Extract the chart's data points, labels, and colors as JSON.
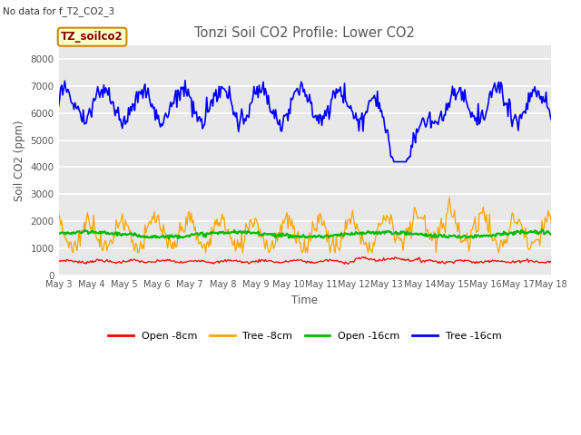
{
  "title": "Tonzi Soil CO2 Profile: Lower CO2",
  "subtitle": "No data for f_T2_CO2_3",
  "xlabel": "Time",
  "ylabel": "Soil CO2 (ppm)",
  "ylim": [
    0,
    8500
  ],
  "yticks": [
    0,
    1000,
    2000,
    3000,
    4000,
    5000,
    6000,
    7000,
    8000
  ],
  "x_labels": [
    "May 3",
    "May 4",
    "May 5",
    "May 6",
    "May 7",
    "May 8",
    "May 9",
    "May 10",
    "May 11",
    "May 12",
    "May 13",
    "May 14",
    "May 15",
    "May 16",
    "May 17",
    "May 18"
  ],
  "legend_labels": [
    "Open -8cm",
    "Tree -8cm",
    "Open -16cm",
    "Tree -16cm"
  ],
  "legend_colors": [
    "#ff0000",
    "#ffa500",
    "#00bb00",
    "#0000ff"
  ],
  "inset_label": "TZ_soilco2",
  "inset_bg": "#ffffcc",
  "inset_border": "#cc8800",
  "plot_bg_color": "#e8e8e8",
  "fig_bg_color": "#ffffff",
  "title_color": "#555555",
  "subtitle_color": "#333333",
  "axis_label_color": "#555555",
  "tick_label_color": "#555555",
  "grid_color": "#ffffff",
  "n_points": 480
}
